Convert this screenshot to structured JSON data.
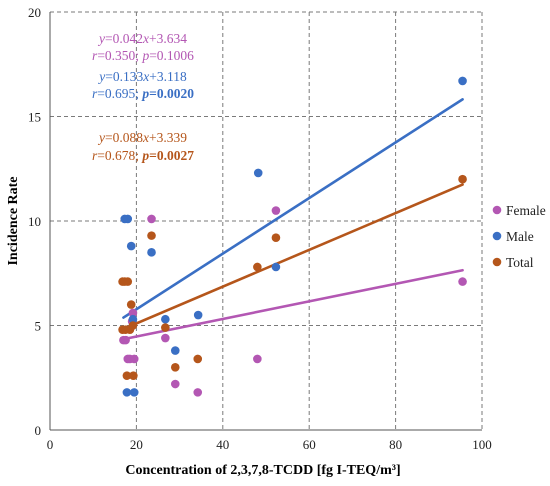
{
  "chart_data": {
    "type": "scatter",
    "xlabel": "Concentration of 2,3,7,8-TCDD [fg I-TEQ/m³]",
    "ylabel": "Incidence Rate",
    "xlim": [
      0,
      100
    ],
    "ylim": [
      0,
      20
    ],
    "xticks": [
      0,
      20,
      40,
      60,
      80,
      100
    ],
    "yticks": [
      0,
      5,
      10,
      15,
      20
    ],
    "grid": true,
    "legend_position": "right",
    "series": [
      {
        "name": "Female",
        "color": "#b357b3",
        "points": [
          [
            17.0,
            4.3
          ],
          [
            17.5,
            4.3
          ],
          [
            18.0,
            3.4
          ],
          [
            18.5,
            3.4
          ],
          [
            19.5,
            3.4
          ],
          [
            19.0,
            5.2
          ],
          [
            19.2,
            5.6
          ],
          [
            23.5,
            10.1
          ],
          [
            26.7,
            4.4
          ],
          [
            29.0,
            2.2
          ],
          [
            34.2,
            1.8
          ],
          [
            48.0,
            3.4
          ],
          [
            52.3,
            10.5
          ],
          [
            95.5,
            7.1
          ]
        ],
        "fit": {
          "slope": 0.042,
          "intercept": 3.634,
          "x_range": [
            17.0,
            95.5
          ]
        }
      },
      {
        "name": "Male",
        "color": "#3a6fc4",
        "points": [
          [
            17.3,
            10.1
          ],
          [
            18.0,
            10.1
          ],
          [
            18.8,
            8.8
          ],
          [
            17.8,
            1.8
          ],
          [
            19.5,
            1.8
          ],
          [
            19.2,
            5.3
          ],
          [
            23.5,
            8.5
          ],
          [
            26.7,
            5.3
          ],
          [
            29.0,
            3.8
          ],
          [
            34.3,
            5.5
          ],
          [
            48.2,
            12.3
          ],
          [
            52.3,
            7.8
          ],
          [
            95.5,
            16.7
          ]
        ],
        "fit": {
          "slope": 0.133,
          "intercept": 3.118,
          "x_range": [
            17.0,
            95.5
          ]
        }
      },
      {
        "name": "Total",
        "color": "#b5561b",
        "points": [
          [
            16.8,
            7.1
          ],
          [
            17.3,
            7.1
          ],
          [
            18.0,
            7.1
          ],
          [
            16.8,
            4.8
          ],
          [
            17.5,
            4.8
          ],
          [
            18.5,
            4.8
          ],
          [
            17.8,
            2.6
          ],
          [
            19.3,
            2.6
          ],
          [
            18.8,
            6.0
          ],
          [
            19.2,
            5.0
          ],
          [
            23.5,
            9.3
          ],
          [
            26.7,
            4.9
          ],
          [
            29.0,
            3.0
          ],
          [
            34.2,
            3.4
          ],
          [
            48.0,
            7.8
          ],
          [
            52.3,
            9.2
          ],
          [
            95.5,
            12.0
          ]
        ],
        "fit": {
          "slope": 0.088,
          "intercept": 3.339,
          "x_range": [
            17.0,
            95.5
          ]
        }
      }
    ],
    "annotations": [
      {
        "series": "Female",
        "equation": "y=0.042x+3.634",
        "stats": "r=0.350; p=0.1006",
        "stats_bold": false
      },
      {
        "series": "Male",
        "equation": "y=0.133x+3.118",
        "stats": "r=0.695; p=0.0020",
        "stats_bold": true
      },
      {
        "series": "Total",
        "equation": "y=0.088x+3.339",
        "stats": "r=0.678; p=0.0027",
        "stats_bold": true
      }
    ]
  }
}
